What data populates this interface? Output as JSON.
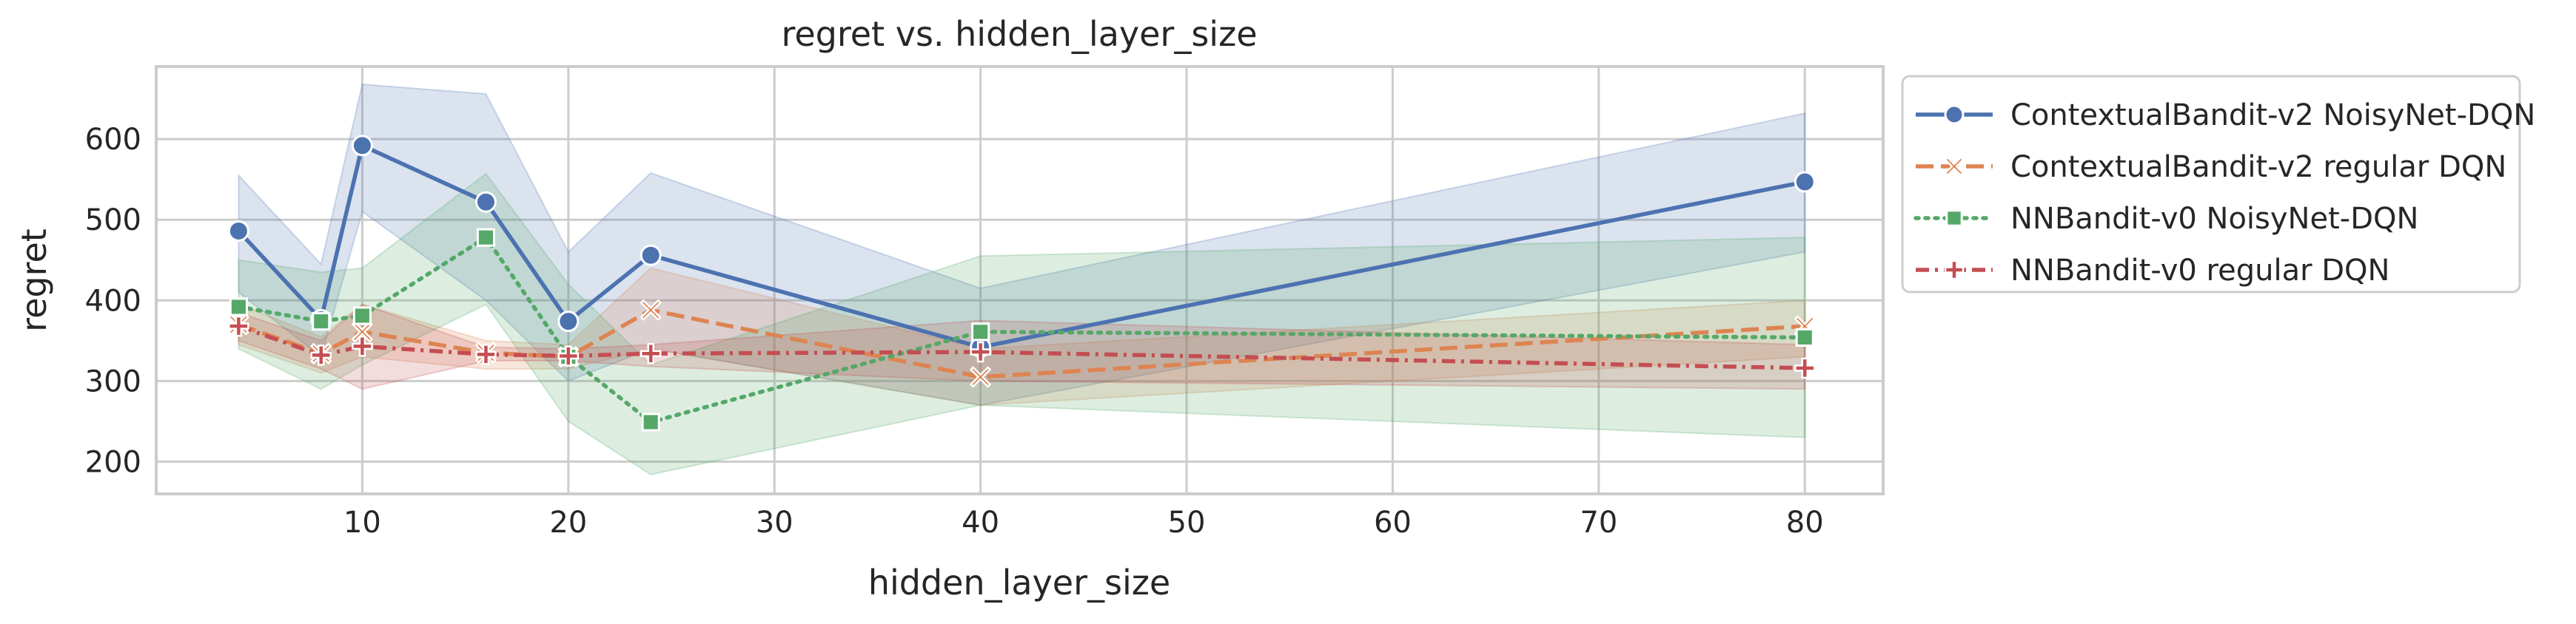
{
  "chart_data": {
    "type": "line",
    "title": "regret vs. hidden_layer_size",
    "xlabel": "hidden_layer_size",
    "ylabel": "regret",
    "xlim": [
      0.0,
      83.8
    ],
    "ylim": [
      160,
      690
    ],
    "xticks": [
      10,
      20,
      30,
      40,
      50,
      60,
      70,
      80
    ],
    "yticks": [
      200,
      300,
      400,
      500,
      600
    ],
    "grid": true,
    "legend_position": "outside-right-top",
    "x": [
      4,
      8,
      10,
      16,
      20,
      24,
      40,
      80
    ],
    "series": [
      {
        "name": "ContextualBandit-v2 NoisyNet-DQN",
        "color": "#4c72b0",
        "line_style": "solid",
        "marker": "circle",
        "values": [
          486,
          376,
          592,
          522,
          374,
          456,
          342,
          547
        ],
        "ci_lower": [
          410,
          330,
          510,
          400,
          300,
          340,
          270,
          460
        ],
        "ci_upper": [
          555,
          445,
          668,
          656,
          460,
          558,
          415,
          632
        ]
      },
      {
        "name": "ContextualBandit-v2 regular DQN",
        "color": "#dd8452",
        "line_style": "dashed",
        "marker": "x",
        "values": [
          370,
          334,
          361,
          335,
          330,
          388,
          305,
          368
        ],
        "ci_lower": [
          345,
          310,
          330,
          315,
          315,
          340,
          270,
          330
        ],
        "ci_upper": [
          395,
          355,
          395,
          350,
          345,
          440,
          340,
          400
        ]
      },
      {
        "name": "NNBandit-v0 NoisyNet-DQN",
        "color": "#55a868",
        "line_style": "dotted",
        "marker": "square",
        "values": [
          392,
          374,
          381,
          478,
          330,
          249,
          361,
          354
        ],
        "ci_lower": [
          340,
          290,
          320,
          395,
          250,
          184,
          270,
          230
        ],
        "ci_upper": [
          450,
          435,
          440,
          557,
          420,
          320,
          455,
          478
        ]
      },
      {
        "name": "NNBandit-v0 regular DQN",
        "color": "#c44e52",
        "line_style": "dashdot",
        "marker": "plus",
        "values": [
          368,
          332,
          343,
          333,
          331,
          334,
          336,
          316
        ],
        "ci_lower": [
          350,
          315,
          290,
          325,
          325,
          318,
          300,
          290
        ],
        "ci_upper": [
          385,
          350,
          395,
          342,
          340,
          345,
          375,
          345
        ]
      }
    ]
  }
}
